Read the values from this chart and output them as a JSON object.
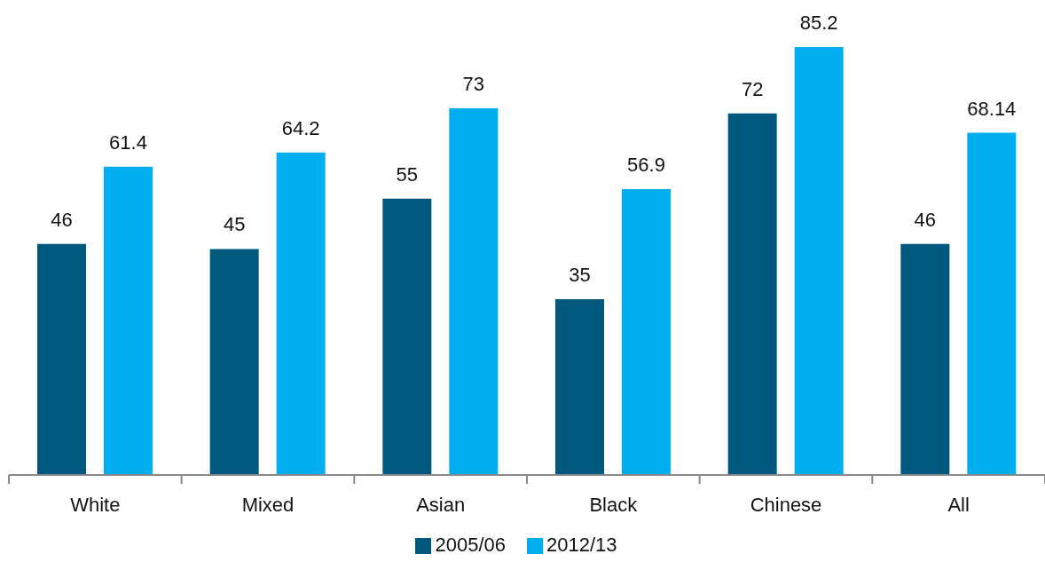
{
  "chart_data": {
    "type": "bar",
    "categories": [
      "White",
      "Mixed",
      "Asian",
      "Black",
      "Chinese",
      "All"
    ],
    "series": [
      {
        "name": "2005/06",
        "color": "#00587c",
        "values": [
          46,
          45,
          55,
          35,
          72,
          46
        ]
      },
      {
        "name": "2012/13",
        "color": "#00aeef",
        "values": [
          61.4,
          64.2,
          73,
          56.9,
          85.2,
          68.14
        ]
      }
    ],
    "data_labels": true,
    "legend": "bottom",
    "tick_labels": "x"
  }
}
